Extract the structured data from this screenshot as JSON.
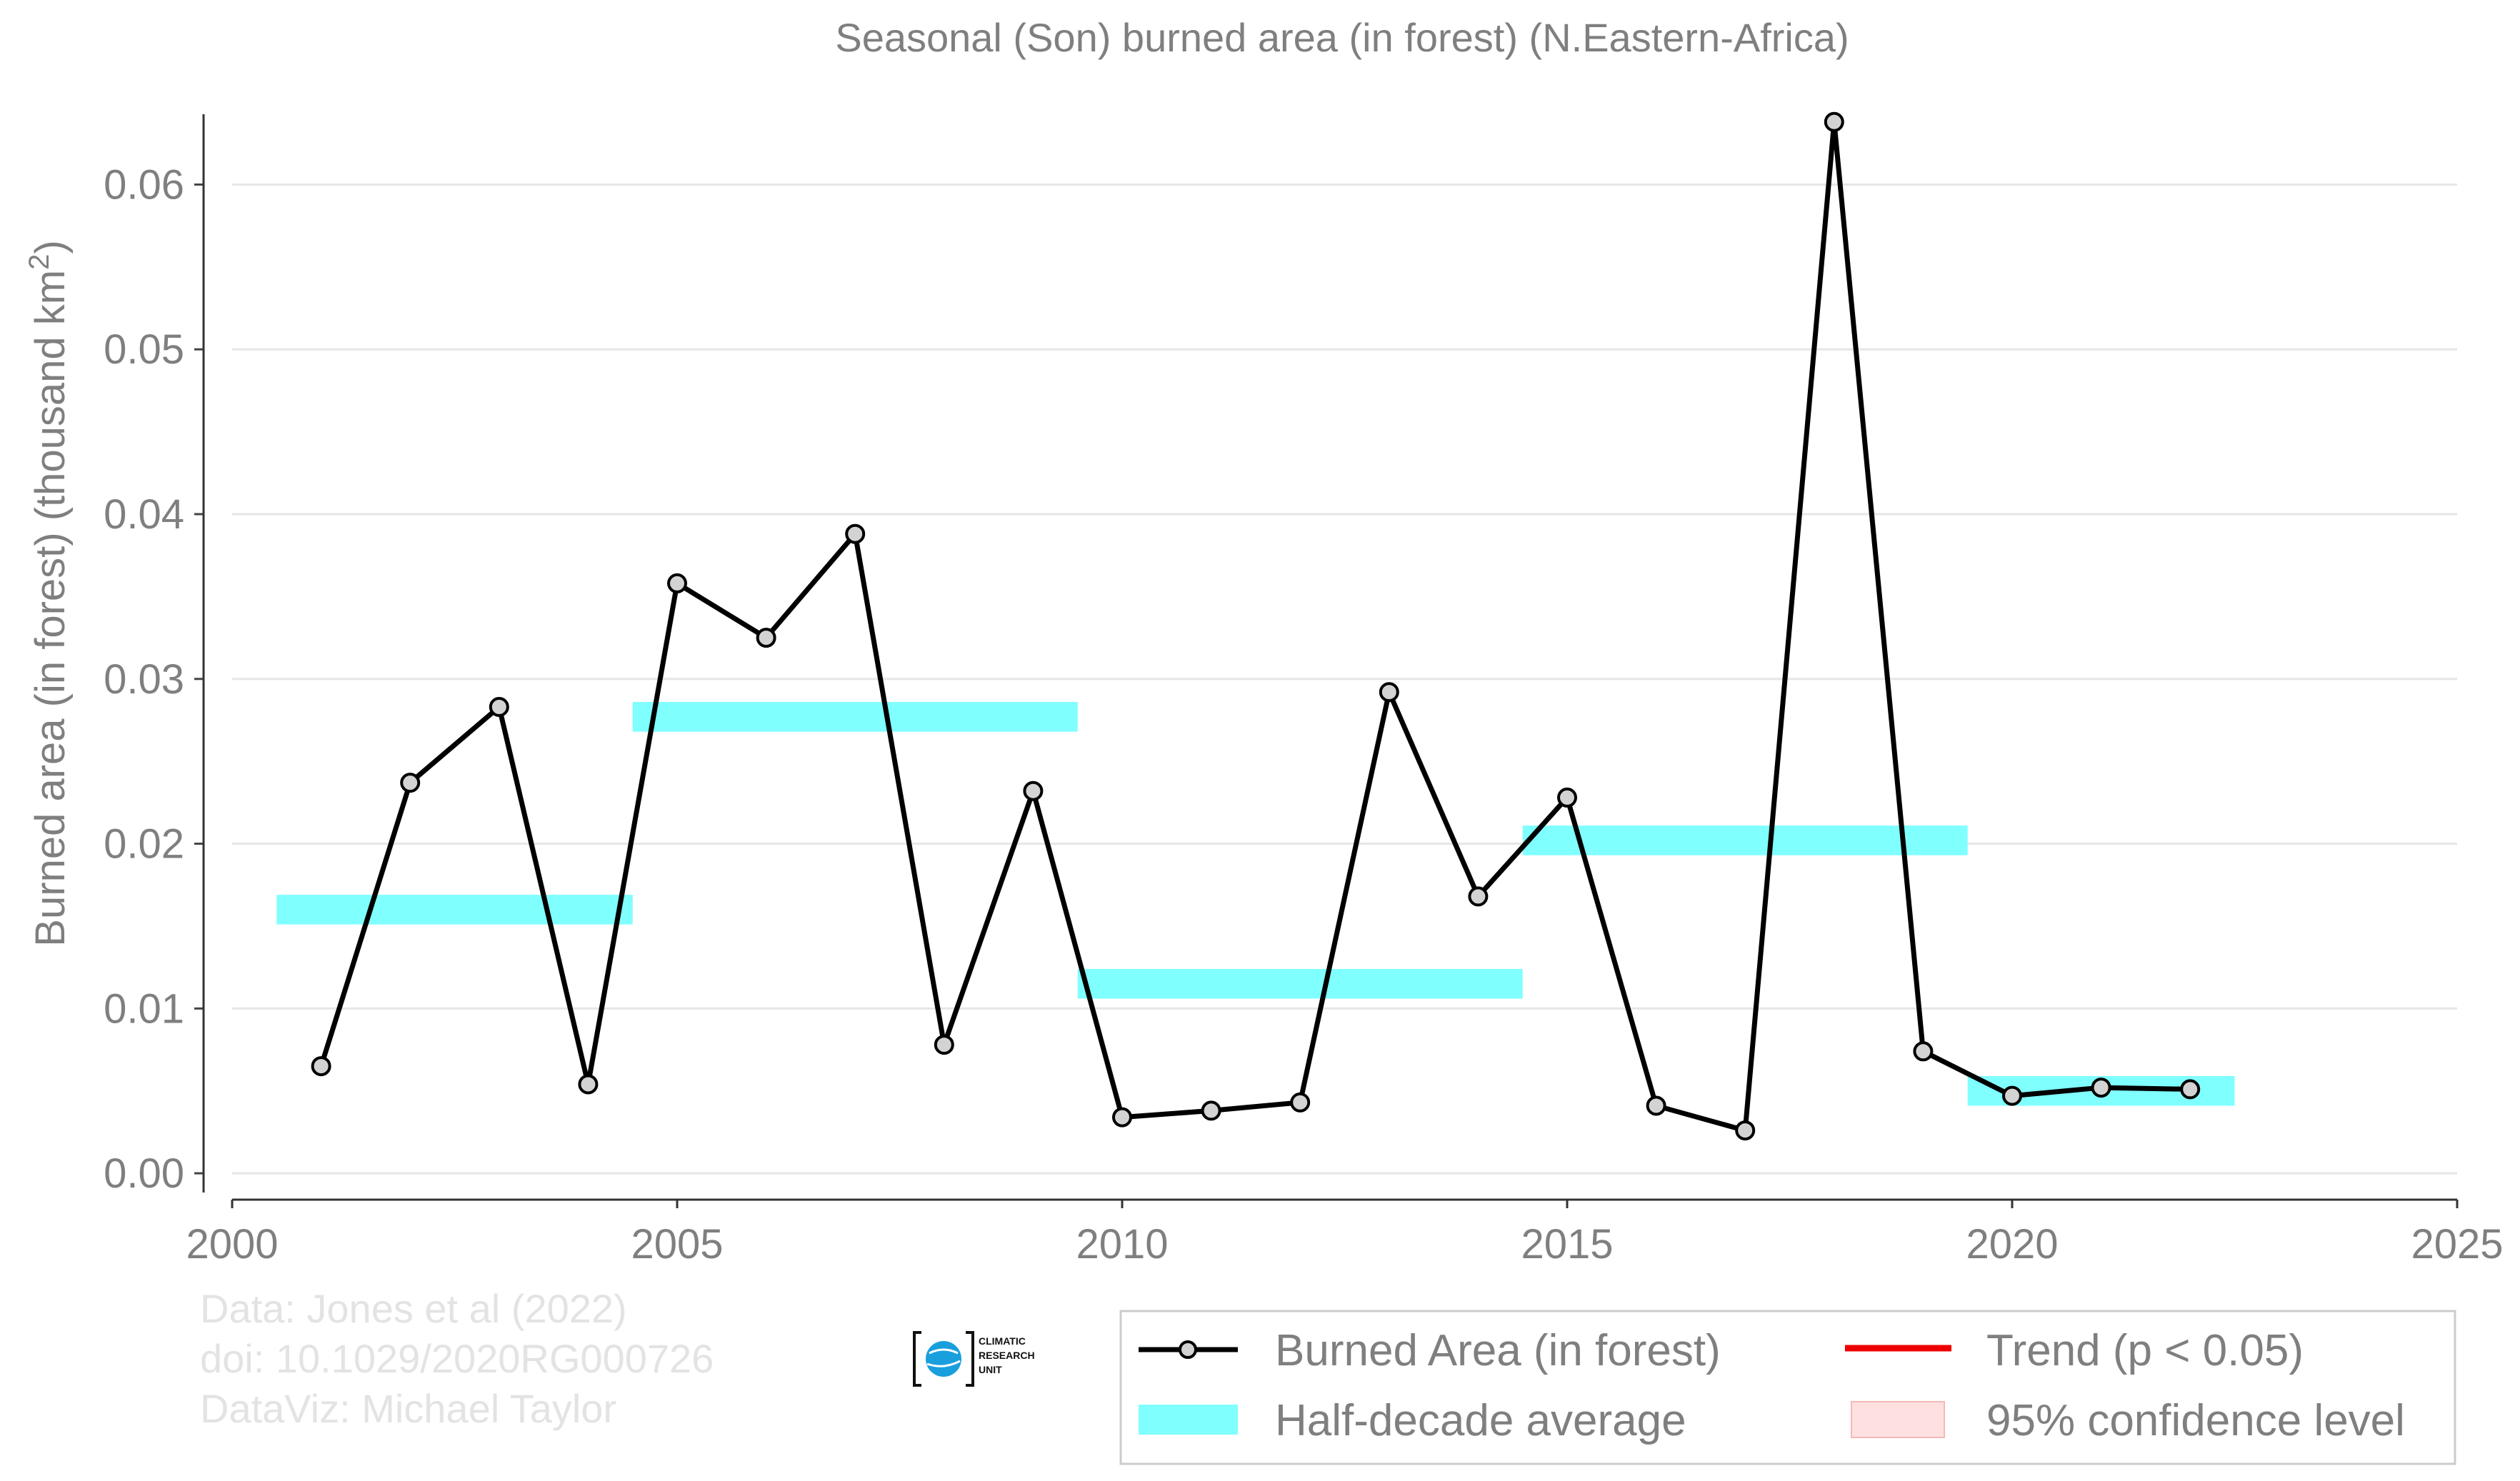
{
  "chart_data": {
    "type": "line",
    "title": "Seasonal (Son) burned area (in forest) (N.Eastern-Africa)",
    "ylabel": "Burned area (in forest) (thousand km",
    "ylabel_sup": "2",
    "ylabel_close": ")",
    "xlim": [
      2000,
      2025
    ],
    "ylim": [
      -0.0016,
      0.066
    ],
    "x_ticks": [
      2000,
      2005,
      2010,
      2015,
      2020,
      2025
    ],
    "x_tick_labels": [
      "2000",
      "2005",
      "2010",
      "2015",
      "2020",
      "2025"
    ],
    "y_ticks": [
      0,
      0.01,
      0.02,
      0.03,
      0.04,
      0.05,
      0.06
    ],
    "y_tick_labels": [
      "0.00",
      "0.01",
      "0.02",
      "0.03",
      "0.04",
      "0.05",
      "0.06"
    ],
    "grid": "horizontal",
    "legend_position": "bottom-right",
    "series": [
      {
        "name": "Burned Area (in forest)",
        "x": [
          2001,
          2002,
          2003,
          2004,
          2005,
          2006,
          2007,
          2008,
          2009,
          2010,
          2011,
          2012,
          2013,
          2014,
          2015,
          2016,
          2017,
          2018,
          2019,
          2020,
          2021,
          2022
        ],
        "y": [
          0.0065,
          0.0237,
          0.0283,
          0.0054,
          0.0358,
          0.0325,
          0.0388,
          0.0078,
          0.0232,
          0.0034,
          0.0038,
          0.0043,
          0.0292,
          0.0168,
          0.0228,
          0.0041,
          0.0026,
          0.0638,
          0.0074,
          0.0047,
          0.0052,
          0.0051
        ],
        "color": "#000000"
      }
    ],
    "half_decade_average": {
      "name": "Half-decade average",
      "color": "#80ffff",
      "segments": [
        {
          "x_start": 2000.5,
          "x_end": 2004.5,
          "y": 0.016
        },
        {
          "x_start": 2004.5,
          "x_end": 2009.5,
          "y": 0.0277
        },
        {
          "x_start": 2009.5,
          "x_end": 2014.5,
          "y": 0.0115
        },
        {
          "x_start": 2014.5,
          "x_end": 2019.5,
          "y": 0.0202
        },
        {
          "x_start": 2019.5,
          "x_end": 2022.5,
          "y": 0.005
        }
      ]
    },
    "legend": {
      "entries": [
        {
          "label": "Burned Area (in forest)",
          "kind": "line-marker",
          "color": "#000000"
        },
        {
          "label": "Trend (p < 0.05)",
          "kind": "line",
          "color": "#ee0000"
        },
        {
          "label": "Half-decade average",
          "kind": "band",
          "color": "#80ffff"
        },
        {
          "label": "95% confidence level",
          "kind": "patch",
          "color": "#ffe0e0"
        }
      ]
    },
    "credits": [
      "Data: Jones et al (2022)",
      "doi: 10.1029/2020RG000726",
      "DataViz: Michael Taylor"
    ],
    "logo_text": [
      "CLIMATIC",
      "RESEARCH",
      "UNIT"
    ]
  }
}
